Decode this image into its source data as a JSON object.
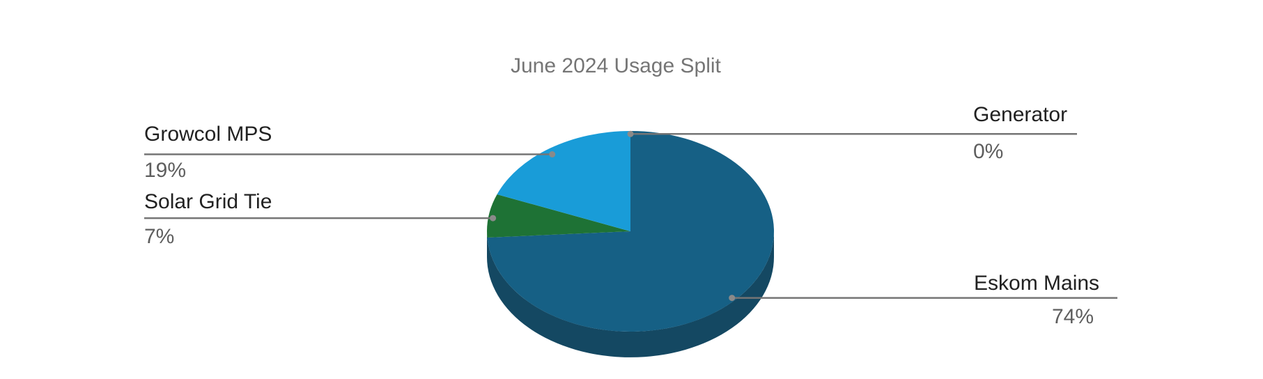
{
  "page": {
    "background": "#ffffff"
  },
  "chart_data": {
    "type": "pie",
    "is3D": true,
    "title": "June 2024 Usage Split",
    "legend_position": "labeled",
    "slices": [
      {
        "label": "Eskom Mains",
        "value": 74,
        "percent_label": "74%",
        "color": "#166085",
        "side_color": "#144862"
      },
      {
        "label": "Solar Grid Tie",
        "value": 7,
        "percent_label": "7%",
        "color": "#1e7235"
      },
      {
        "label": "Growcol MPS",
        "value": 19,
        "percent_label": "19%",
        "color": "#199cd8"
      },
      {
        "label": "Generator",
        "value": 0,
        "percent_label": "0%"
      }
    ],
    "colors": {
      "title": "#757575",
      "slice_label": "#212121",
      "percent_label": "#5e5e5e",
      "leader_line": "#757575",
      "leader_dot": "#8a8a8a"
    }
  }
}
